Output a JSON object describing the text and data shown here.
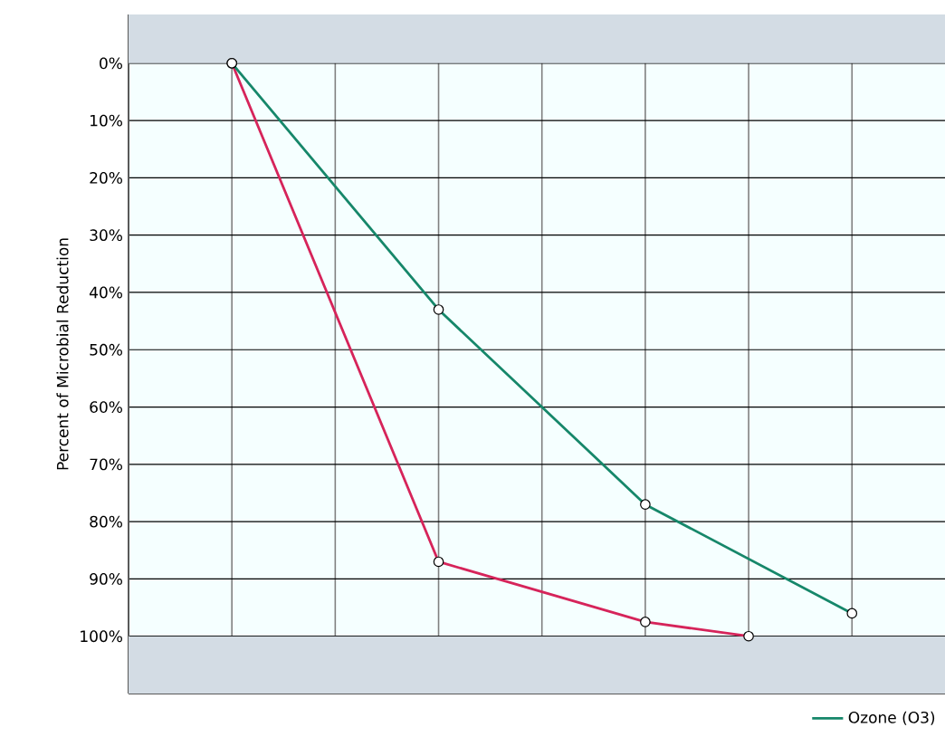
{
  "chart_data": {
    "type": "line",
    "ylabel": "Percent of Microbial Reduction",
    "categories": [
      null,
      null,
      null,
      null,
      null,
      null,
      null
    ],
    "series": [
      {
        "color": "#d6245a",
        "values": [
          0,
          null,
          87,
          null,
          97.5,
          100,
          null
        ]
      },
      {
        "name": "Ozone (O3)",
        "color": "#16876a",
        "values": [
          0,
          null,
          43,
          null,
          77,
          null,
          96
        ]
      }
    ],
    "ylim": [
      110,
      -8.5
    ],
    "yticks": [
      {
        "value": 0,
        "label": "0%"
      },
      {
        "value": 10,
        "label": "10%"
      },
      {
        "value": 20,
        "label": "20%"
      },
      {
        "value": 30,
        "label": "30%"
      },
      {
        "value": 40,
        "label": "40%"
      },
      {
        "value": 50,
        "label": "50%"
      },
      {
        "value": 60,
        "label": "60%"
      },
      {
        "value": 70,
        "label": "70%"
      },
      {
        "value": 80,
        "label": "80%"
      },
      {
        "value": 90,
        "label": "90%"
      },
      {
        "value": 100,
        "label": "100%"
      }
    ],
    "bands": [
      {
        "axis": "y",
        "from": -8.5,
        "to": 0,
        "color": "#d3dce4"
      },
      {
        "axis": "y",
        "from": 100,
        "to": 110,
        "color": "#d3dce4"
      }
    ],
    "tick_labels": "y",
    "grid": true,
    "legend": "bottom right",
    "marker": "circle",
    "line_style": "solid"
  }
}
